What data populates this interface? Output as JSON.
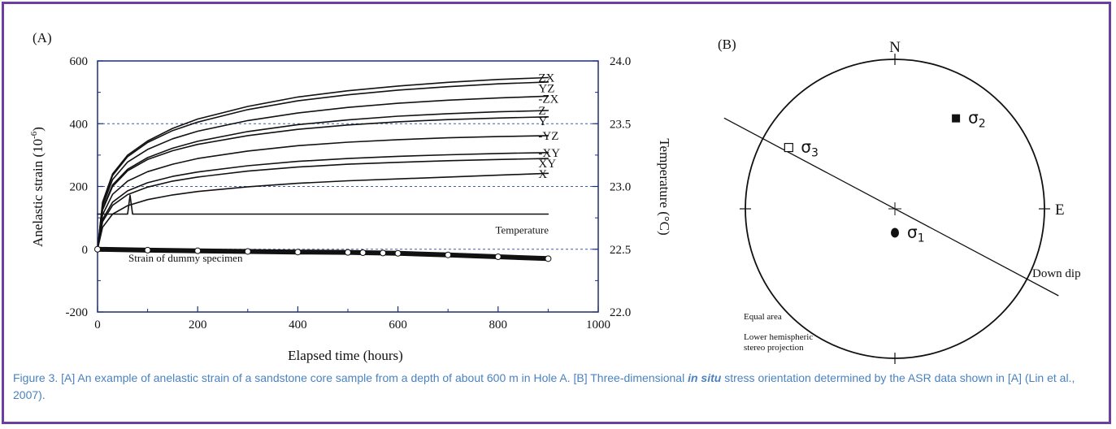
{
  "frame_color": "#6b3fa0",
  "chart_data": [
    {
      "type": "line",
      "panel_label": "(A)",
      "xlabel": "Elapsed time (hours)",
      "ylabel": "Anelastic strain (10",
      "ylabel_sup": "-6",
      "ylabel_end": ")",
      "y2label": "Temperature (°C)",
      "xlim": [
        0,
        1000
      ],
      "ylim": [
        -200,
        600
      ],
      "y2lim": [
        22.0,
        24.0
      ],
      "x_ticks": [
        "0",
        "200",
        "400",
        "600",
        "800",
        "1000"
      ],
      "y_ticks": [
        "-200",
        "0",
        "200",
        "400",
        "600"
      ],
      "y2_ticks": [
        "22.0",
        "22.5",
        "23.0",
        "23.5",
        "24.0"
      ],
      "grid": "dotted at y2 = 22.5, 23.0, 23.5",
      "series": [
        {
          "name": "ZX",
          "x": [
            0,
            10,
            30,
            60,
            100,
            150,
            200,
            300,
            400,
            500,
            600,
            700,
            800,
            900
          ],
          "y": [
            0,
            150,
            240,
            300,
            345,
            385,
            415,
            455,
            485,
            505,
            520,
            532,
            541,
            547
          ]
        },
        {
          "name": "YZ",
          "x": [
            0,
            10,
            30,
            60,
            100,
            150,
            200,
            300,
            400,
            500,
            600,
            700,
            800,
            900
          ],
          "y": [
            0,
            145,
            235,
            295,
            340,
            378,
            405,
            445,
            473,
            492,
            507,
            518,
            527,
            533
          ]
        },
        {
          "name": "-ZX",
          "x": [
            0,
            10,
            30,
            60,
            100,
            150,
            200,
            300,
            400,
            500,
            600,
            700,
            800,
            900
          ],
          "y": [
            0,
            138,
            222,
            278,
            318,
            352,
            376,
            410,
            434,
            452,
            465,
            475,
            482,
            488
          ]
        },
        {
          "name": "Z",
          "x": [
            0,
            10,
            30,
            60,
            100,
            150,
            200,
            300,
            400,
            500,
            600,
            700,
            800,
            900
          ],
          "y": [
            0,
            128,
            205,
            255,
            292,
            322,
            344,
            375,
            397,
            412,
            424,
            432,
            438,
            442
          ]
        },
        {
          "name": "Y",
          "x": [
            0,
            10,
            30,
            60,
            100,
            150,
            200,
            300,
            400,
            500,
            600,
            700,
            800,
            900
          ],
          "y": [
            0,
            125,
            200,
            250,
            286,
            314,
            334,
            362,
            382,
            396,
            406,
            413,
            418,
            422
          ]
        },
        {
          "name": "-YZ",
          "x": [
            0,
            10,
            30,
            60,
            100,
            150,
            200,
            300,
            400,
            500,
            600,
            700,
            800,
            900
          ],
          "y": [
            0,
            110,
            175,
            217,
            247,
            271,
            289,
            313,
            330,
            341,
            349,
            355,
            359,
            362
          ]
        },
        {
          "name": "-XY",
          "x": [
            0,
            10,
            30,
            60,
            100,
            150,
            200,
            300,
            400,
            500,
            600,
            700,
            800,
            900
          ],
          "y": [
            0,
            95,
            150,
            186,
            212,
            232,
            246,
            266,
            280,
            289,
            296,
            301,
            305,
            308
          ]
        },
        {
          "name": "XY",
          "x": [
            0,
            10,
            30,
            60,
            100,
            150,
            200,
            300,
            400,
            500,
            600,
            700,
            800,
            900
          ],
          "y": [
            0,
            88,
            140,
            174,
            198,
            217,
            230,
            249,
            262,
            271,
            277,
            282,
            286,
            289
          ]
        },
        {
          "name": "X",
          "x": [
            0,
            10,
            30,
            60,
            100,
            150,
            200,
            300,
            400,
            500,
            600,
            700,
            800,
            900
          ],
          "y": [
            0,
            70,
            112,
            139,
            158,
            173,
            184,
            199,
            210,
            218,
            224,
            230,
            236,
            242
          ]
        },
        {
          "name": "Temperature",
          "axis": "right",
          "x": [
            0,
            10,
            60,
            65,
            70,
            900
          ],
          "y": [
            22.78,
            22.78,
            22.78,
            22.93,
            22.78,
            22.78
          ]
        },
        {
          "name": "Strain of dummy specimen",
          "x": [
            0,
            100,
            200,
            300,
            400,
            500,
            530,
            570,
            600,
            700,
            800,
            900
          ],
          "y": [
            0,
            -3,
            -5,
            -7,
            -9,
            -10,
            -11,
            -12,
            -13,
            -18,
            -24,
            -30
          ]
        }
      ]
    },
    {
      "type": "stereonet",
      "panel_label": "(B)",
      "north_label": "N",
      "east_label": "E",
      "plane_label": "Down dip",
      "plane_strike_deg": 298,
      "points": [
        {
          "label": "σ",
          "sub": "1",
          "marker": "filled-circle",
          "azimuth_deg": 180,
          "radius_frac": 0.16
        },
        {
          "label": "σ",
          "sub": "2",
          "marker": "filled-square",
          "azimuth_deg": 34,
          "radius_frac": 0.73
        },
        {
          "label": "σ",
          "sub": "3",
          "marker": "open-square",
          "azimuth_deg": 300,
          "radius_frac": 0.82
        }
      ],
      "notes": [
        "Equal area",
        "Lower hemispheric",
        "stereo projection"
      ]
    }
  ],
  "caption": {
    "part1": "Figure 3. [A] An example of anelastic strain of a sandstone core sample from a depth of about 600 m in Hole A. [B] Three-dimensional ",
    "emph": "in situ",
    "part2": " stress orientation determined by the ASR data shown in [A] (Lin et al., 2007)."
  }
}
